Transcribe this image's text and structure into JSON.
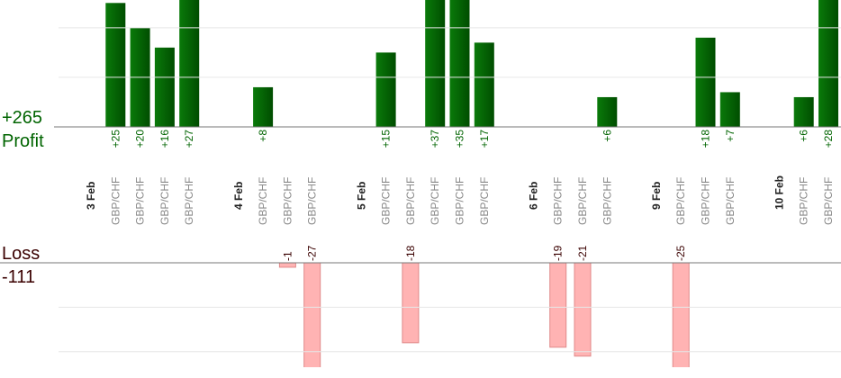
{
  "chart_data": {
    "type": "bar",
    "profit_total": "+265",
    "profit_label": "Profit",
    "loss_label": "Loss",
    "loss_total": "-111",
    "profit_color": "#006400",
    "loss_color": "#ffb3b3",
    "profit_ylim": [
      0,
      25.6
    ],
    "profit_yticks": [
      10,
      20
    ],
    "loss_ylim": [
      -23.5,
      0
    ],
    "loss_yticks": [
      -10,
      -20
    ],
    "grid": true,
    "groups": [
      {
        "name": "3 Feb",
        "categories": [
          "GBP/CHF",
          "GBP/CHF",
          "GBP/CHF",
          "GBP/CHF"
        ],
        "values": [
          25,
          20,
          16,
          27
        ],
        "value_labels": [
          "+25",
          "+20",
          "+16",
          "+27"
        ]
      },
      {
        "name": "4 Feb",
        "categories": [
          "GBP/CHF",
          "GBP/CHF",
          "GBP/CHF"
        ],
        "values": [
          8,
          -1,
          -27
        ],
        "value_labels": [
          "+8",
          "-1",
          "-27"
        ]
      },
      {
        "name": "5 Feb",
        "categories": [
          "GBP/CHF",
          "GBP/CHF",
          "GBP/CHF",
          "GBP/CHF",
          "GBP/CHF"
        ],
        "values": [
          15,
          -18,
          37,
          35,
          17
        ],
        "value_labels": [
          "+15",
          "-18",
          "+37",
          "+35",
          "+17"
        ]
      },
      {
        "name": "6 Feb",
        "categories": [
          "GBP/CHF",
          "GBP/CHF",
          "GBP/CHF"
        ],
        "values": [
          -19,
          -21,
          6
        ],
        "value_labels": [
          "-19",
          "-21",
          "+6"
        ]
      },
      {
        "name": "9 Feb",
        "categories": [
          "GBP/CHF",
          "GBP/CHF",
          "GBP/CHF"
        ],
        "values": [
          -25,
          18,
          7
        ],
        "value_labels": [
          "-25",
          "+18",
          "+7"
        ]
      },
      {
        "name": "10 Feb",
        "categories": [
          "GBP/CHF",
          "GBP/CHF"
        ],
        "values": [
          6,
          28
        ],
        "value_labels": [
          "+6",
          "+28"
        ]
      }
    ]
  }
}
